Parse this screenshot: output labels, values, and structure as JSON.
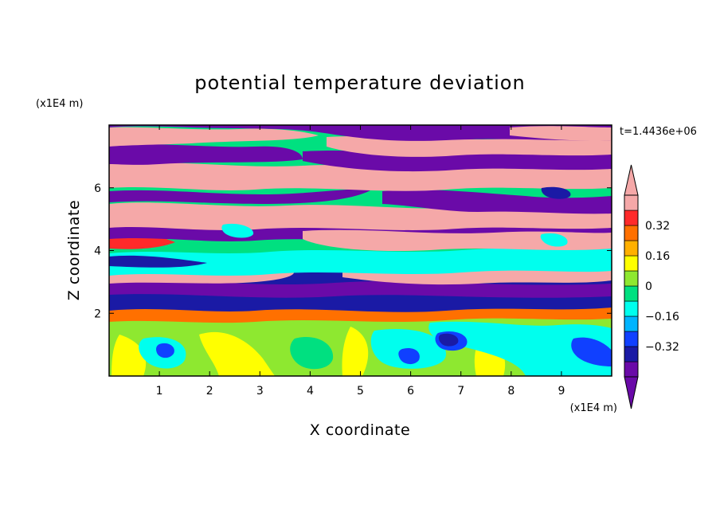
{
  "chart_data": {
    "type": "heatmap",
    "title": "potential temperature deviation",
    "xlabel": "X coordinate",
    "ylabel": "Z coordinate",
    "x_unit": "(x1E4 m)",
    "y_unit": "(x1E4 m)",
    "time_label": "t=1.4436e+06",
    "xlim": [
      0,
      10
    ],
    "ylim": [
      0,
      8
    ],
    "x_ticks": [
      1,
      2,
      3,
      4,
      5,
      6,
      7,
      8,
      9
    ],
    "y_ticks": [
      2,
      4,
      6
    ],
    "x_tick_labels": [
      "1",
      "2",
      "3",
      "4",
      "5",
      "6",
      "7",
      "8",
      "9"
    ],
    "y_tick_labels": [
      "2",
      "4",
      "6"
    ],
    "colorbar": {
      "levels": [
        -0.48,
        -0.4,
        -0.32,
        -0.24,
        -0.16,
        -0.08,
        0,
        0.08,
        0.16,
        0.24,
        0.32,
        0.4,
        0.48
      ],
      "colors": [
        "#6a0aa8",
        "#1a1aa5",
        "#1040ff",
        "#00b4ff",
        "#00ffee",
        "#00e080",
        "#8ee830",
        "#ffff00",
        "#ffb000",
        "#ff7000",
        "#ff2a2a",
        "#f5a8a8"
      ],
      "under_color": "#6a0aa8",
      "over_color": "#f5a8a8",
      "labeled_values": [
        -0.32,
        -0.16,
        0,
        0.16,
        0.32
      ],
      "labels": [
        "−0.32",
        "−0.16",
        "0",
        "0.16",
        "0.32"
      ]
    },
    "colors": {
      "purple": "#6a0aa8",
      "pink": "#f5a8a8",
      "cyan": "#00ffee",
      "blue": "#1a1aa5",
      "yellow": "#ffff00",
      "green": "#8ee830"
    }
  }
}
